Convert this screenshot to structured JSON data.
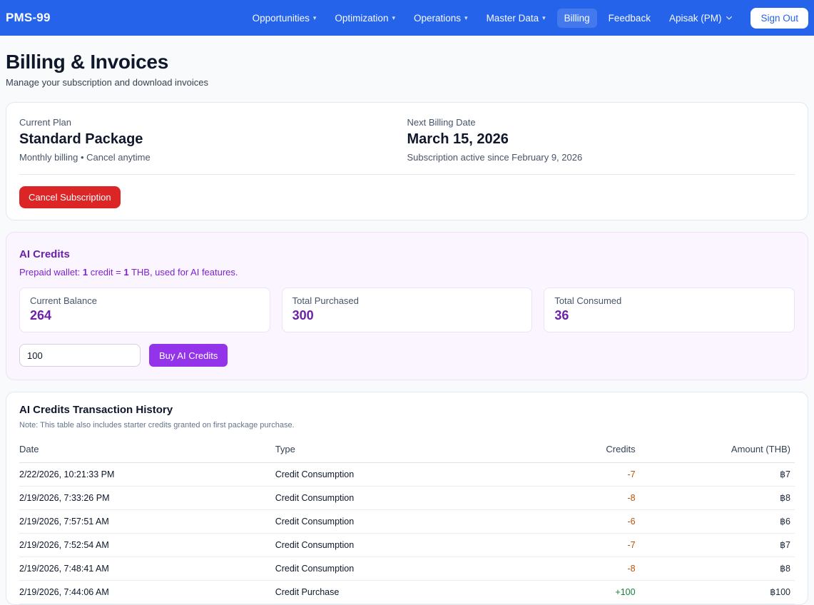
{
  "brand": "PMS-99",
  "nav": {
    "items": [
      {
        "label": "Opportunities",
        "caret": "▾"
      },
      {
        "label": "Optimization",
        "caret": "▾"
      },
      {
        "label": "Operations",
        "caret": "▾"
      },
      {
        "label": "Master Data",
        "caret": "▾"
      },
      {
        "label": "Billing"
      },
      {
        "label": "Feedback"
      }
    ],
    "user_menu_label": "Apisak (PM)",
    "sign_out_label": "Sign Out"
  },
  "page": {
    "title": "Billing & Invoices",
    "subtitle": "Manage your subscription and download invoices"
  },
  "plan_card": {
    "current_plan_label": "Current Plan",
    "plan_name": "Standard Package",
    "plan_note": "Monthly billing • Cancel anytime",
    "next_billing_label": "Next Billing Date",
    "next_billing_date": "March 15, 2026",
    "subscription_note": "Subscription active since February 9, 2026",
    "cancel_button_label": "Cancel Subscription"
  },
  "credits_card": {
    "title": "AI Credits",
    "subtitle_parts": {
      "p1": "Prepaid wallet: ",
      "b1": "1",
      "p2": " credit = ",
      "b2": "1",
      "p3": " THB, used for AI features."
    },
    "stats": [
      {
        "label": "Current Balance",
        "value": "264"
      },
      {
        "label": "Total Purchased",
        "value": "300"
      },
      {
        "label": "Total Consumed",
        "value": "36"
      }
    ],
    "amount_input_value": "100",
    "buy_button_label": "Buy AI Credits"
  },
  "history_card": {
    "title": "AI Credits Transaction History",
    "note": "Note: This table also includes starter credits granted on first package purchase.",
    "columns": [
      "Date",
      "Type",
      "Credits",
      "Amount (THB)"
    ],
    "rows": [
      {
        "date": "2/22/2026, 10:21:33 PM",
        "type": "Credit Consumption",
        "credits": "-7",
        "amount": "฿7"
      },
      {
        "date": "2/19/2026, 7:33:26 PM",
        "type": "Credit Consumption",
        "credits": "-8",
        "amount": "฿8"
      },
      {
        "date": "2/19/2026, 7:57:51 AM",
        "type": "Credit Consumption",
        "credits": "-6",
        "amount": "฿6"
      },
      {
        "date": "2/19/2026, 7:52:54 AM",
        "type": "Credit Consumption",
        "credits": "-7",
        "amount": "฿7"
      },
      {
        "date": "2/19/2026, 7:48:41 AM",
        "type": "Credit Consumption",
        "credits": "-8",
        "amount": "฿8"
      },
      {
        "date": "2/19/2026, 7:44:06 AM",
        "type": "Credit Purchase",
        "credits": "+100",
        "amount": "฿100"
      }
    ]
  },
  "colors": {
    "navbar": "#2563eb",
    "cancel_button": "#dc2626",
    "buy_button": "#9333ea",
    "credits_accent": "#6b21a8",
    "credit_negative": "#b45309",
    "credit_positive": "#15803d"
  }
}
